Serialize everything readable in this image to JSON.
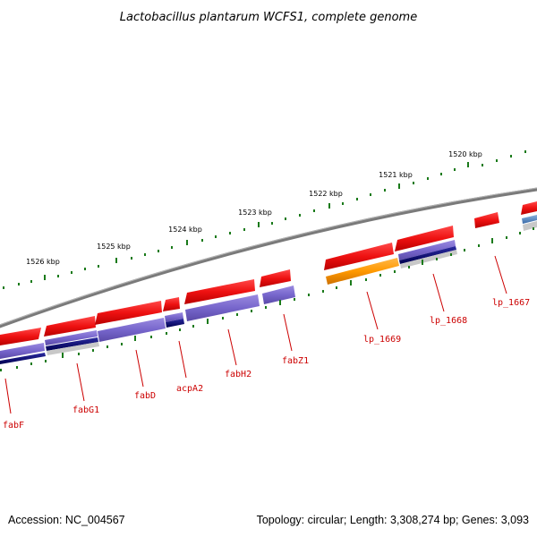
{
  "title": "Lactobacillus plantarum WCFS1, complete genome",
  "footer": {
    "accession": "Accession: NC_004567",
    "summary": "Topology: circular; Length: 3,308,274 bp; Genes: 3,093"
  },
  "colors": {
    "backbone": "#7a7a7a",
    "gene_red": "#ee1111",
    "gene_orange": "#ff9900",
    "track_blue": "#7766cc",
    "track_navy": "#0a0a70",
    "tick_green": "#1a7a1a",
    "label_red": "#cc0000"
  },
  "kbp_ticks": [
    "1520 kbp",
    "1521 kbp",
    "1522 kbp",
    "1523 kbp",
    "1524 kbp",
    "1525 kbp",
    "1526 kbp"
  ],
  "gene_labels": [
    "fabF",
    "fabG1",
    "fabD",
    "acpA2",
    "fabH2",
    "fabZ1",
    "lp_1669",
    "lp_1668",
    "lp_1667"
  ]
}
